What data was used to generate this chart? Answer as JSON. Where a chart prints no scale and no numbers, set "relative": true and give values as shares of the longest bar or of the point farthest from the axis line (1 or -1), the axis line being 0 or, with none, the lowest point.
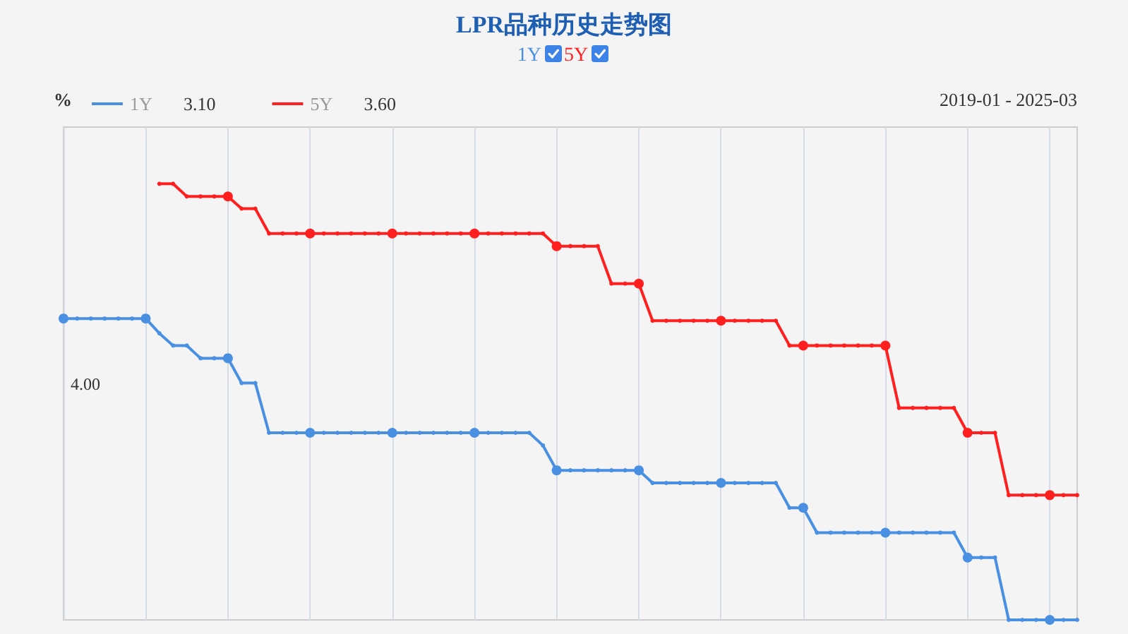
{
  "chart_data": {
    "type": "line",
    "title": "LPR品种历史走势图",
    "ylabel": "%",
    "annotations": [
      "3.10",
      "3.60",
      "2019-01 - 2025-03",
      "4.00"
    ],
    "relative": true,
    "categories": [
      null,
      null,
      null,
      null,
      null,
      null,
      null,
      null,
      null,
      null,
      null,
      null,
      null,
      null,
      null,
      null,
      null,
      null,
      null,
      null,
      null,
      null,
      null,
      null,
      null,
      null,
      null,
      null,
      null,
      null,
      null,
      null,
      null,
      null,
      null,
      null,
      null,
      null,
      null,
      null,
      null,
      null,
      null,
      null,
      null,
      null,
      null,
      null,
      null,
      null,
      null,
      null,
      null,
      null,
      null,
      null,
      null,
      null,
      null,
      null,
      null,
      null,
      null,
      null,
      null,
      null,
      null,
      null,
      null,
      null,
      null,
      null,
      null,
      null,
      null
    ],
    "grid": "x",
    "legend": "top left",
    "marker": "circle",
    "line_style": "solid",
    "series": [
      {
        "name": "1Y",
        "color": "#4a90e2",
        "values": [
          0.691,
          0.691,
          0.691,
          0.691,
          0.691,
          0.691,
          0.691,
          0.657,
          0.629,
          0.629,
          0.6,
          0.6,
          0.6,
          0.543,
          0.543,
          0.429,
          0.429,
          0.429,
          0.429,
          0.429,
          0.429,
          0.429,
          0.429,
          0.429,
          0.429,
          0.429,
          0.429,
          0.429,
          0.429,
          0.429,
          0.429,
          0.429,
          0.429,
          0.429,
          0.429,
          0.4,
          0.343,
          0.343,
          0.343,
          0.343,
          0.343,
          0.343,
          0.343,
          0.314,
          0.314,
          0.314,
          0.314,
          0.314,
          0.314,
          0.314,
          0.314,
          0.314,
          0.314,
          0.257,
          0.257,
          0.2,
          0.2,
          0.2,
          0.2,
          0.2,
          0.2,
          0.2,
          0.2,
          0.2,
          0.2,
          0.2,
          0.143,
          0.143,
          0.143,
          0,
          0,
          0,
          0,
          0,
          0
        ]
      },
      {
        "name": "5Y",
        "color": "#ff1f1f",
        "values": [
          null,
          null,
          null,
          null,
          null,
          null,
          null,
          1,
          1,
          0.971,
          0.971,
          0.971,
          0.971,
          0.943,
          0.943,
          0.886,
          0.886,
          0.886,
          0.886,
          0.886,
          0.886,
          0.886,
          0.886,
          0.886,
          0.886,
          0.886,
          0.886,
          0.886,
          0.886,
          0.886,
          0.886,
          0.886,
          0.886,
          0.886,
          0.886,
          0.886,
          0.857,
          0.857,
          0.857,
          0.857,
          0.771,
          0.771,
          0.771,
          0.686,
          0.686,
          0.686,
          0.686,
          0.686,
          0.686,
          0.686,
          0.686,
          0.686,
          0.686,
          0.629,
          0.629,
          0.629,
          0.629,
          0.629,
          0.629,
          0.629,
          0.629,
          0.486,
          0.486,
          0.486,
          0.486,
          0.486,
          0.429,
          0.429,
          0.429,
          0.286,
          0.286,
          0.286,
          0.286,
          0.286,
          0.286
        ]
      }
    ]
  }
}
